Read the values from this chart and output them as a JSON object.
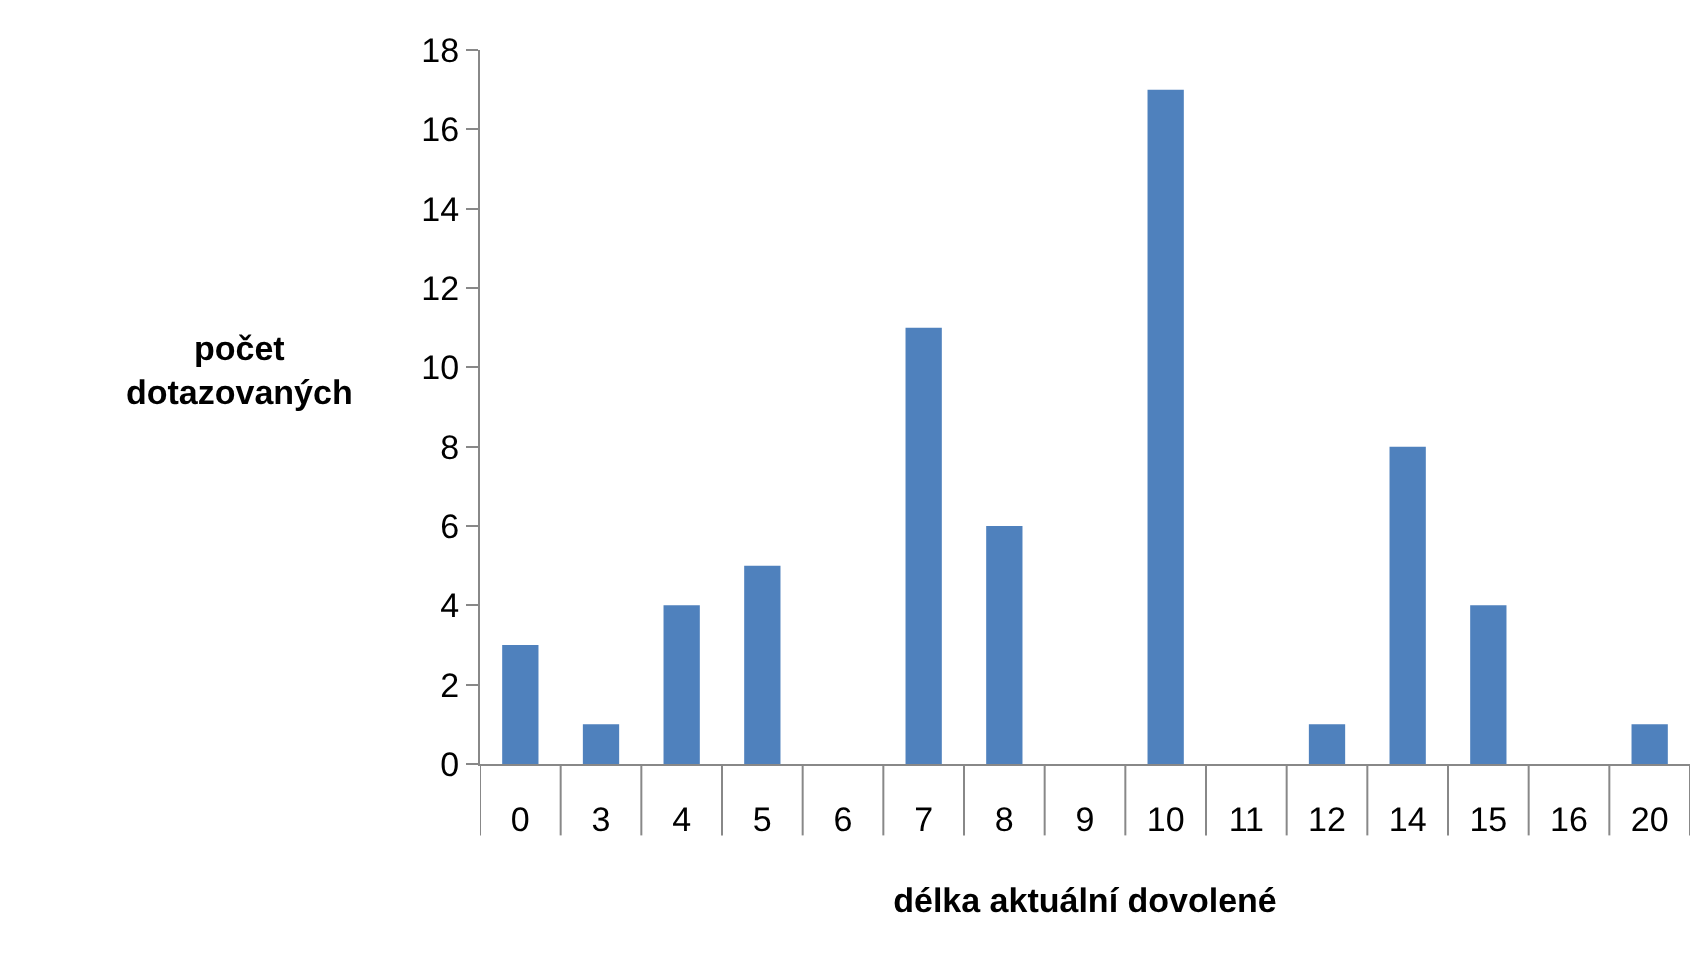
{
  "chart_data": {
    "type": "bar",
    "xlabel": "délka aktuální dovolené",
    "ylabel": "počet dotazovaných",
    "categories": [
      "0",
      "3",
      "4",
      "5",
      "6",
      "7",
      "8",
      "9",
      "10",
      "11",
      "12",
      "14",
      "15",
      "16",
      "20"
    ],
    "values": [
      3,
      1,
      4,
      5,
      0,
      11,
      6,
      0,
      17,
      0,
      1,
      8,
      4,
      0,
      1
    ],
    "color": "#4f81bd",
    "ylim": [
      0,
      18
    ],
    "yticks": [
      0,
      2,
      4,
      6,
      8,
      10,
      12,
      14,
      16,
      18
    ],
    "grid": false,
    "legend": false
  }
}
